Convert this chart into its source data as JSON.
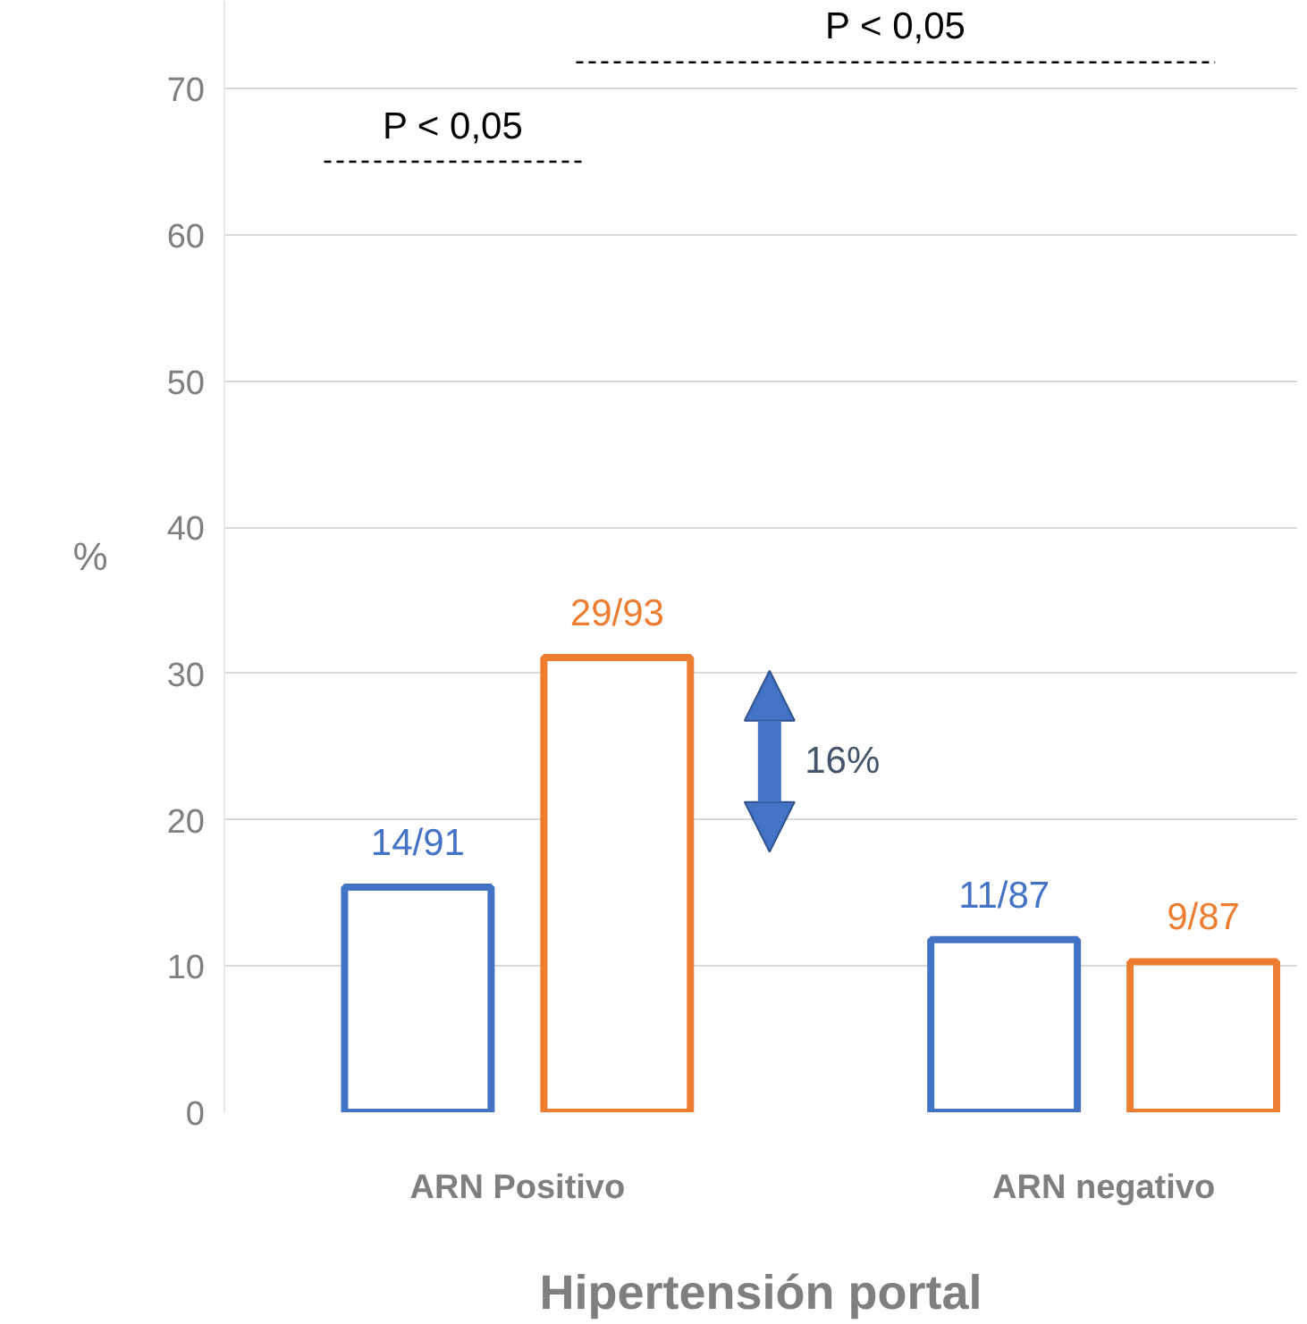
{
  "chart_data": {
    "type": "bar",
    "xlabel": "Hipertensión portal",
    "ylabel": "%",
    "categories": [
      "ARN Positivo",
      "ARN negativo"
    ],
    "series": [
      {
        "color": "#4472c4",
        "values": [
          15.4,
          11.8
        ],
        "value_labels": [
          "14/91",
          "11/87"
        ]
      },
      {
        "color": "#ed7d31",
        "values": [
          31.1,
          10.3
        ],
        "value_labels": [
          "29/93",
          "9/87"
        ]
      }
    ],
    "ylim": [
      0,
      76
    ],
    "yticks": [
      0,
      10,
      20,
      30,
      40,
      50,
      60,
      70
    ],
    "grid": "y",
    "annotations": [
      "P < 0,05",
      "P < 0,05",
      "16%"
    ]
  }
}
